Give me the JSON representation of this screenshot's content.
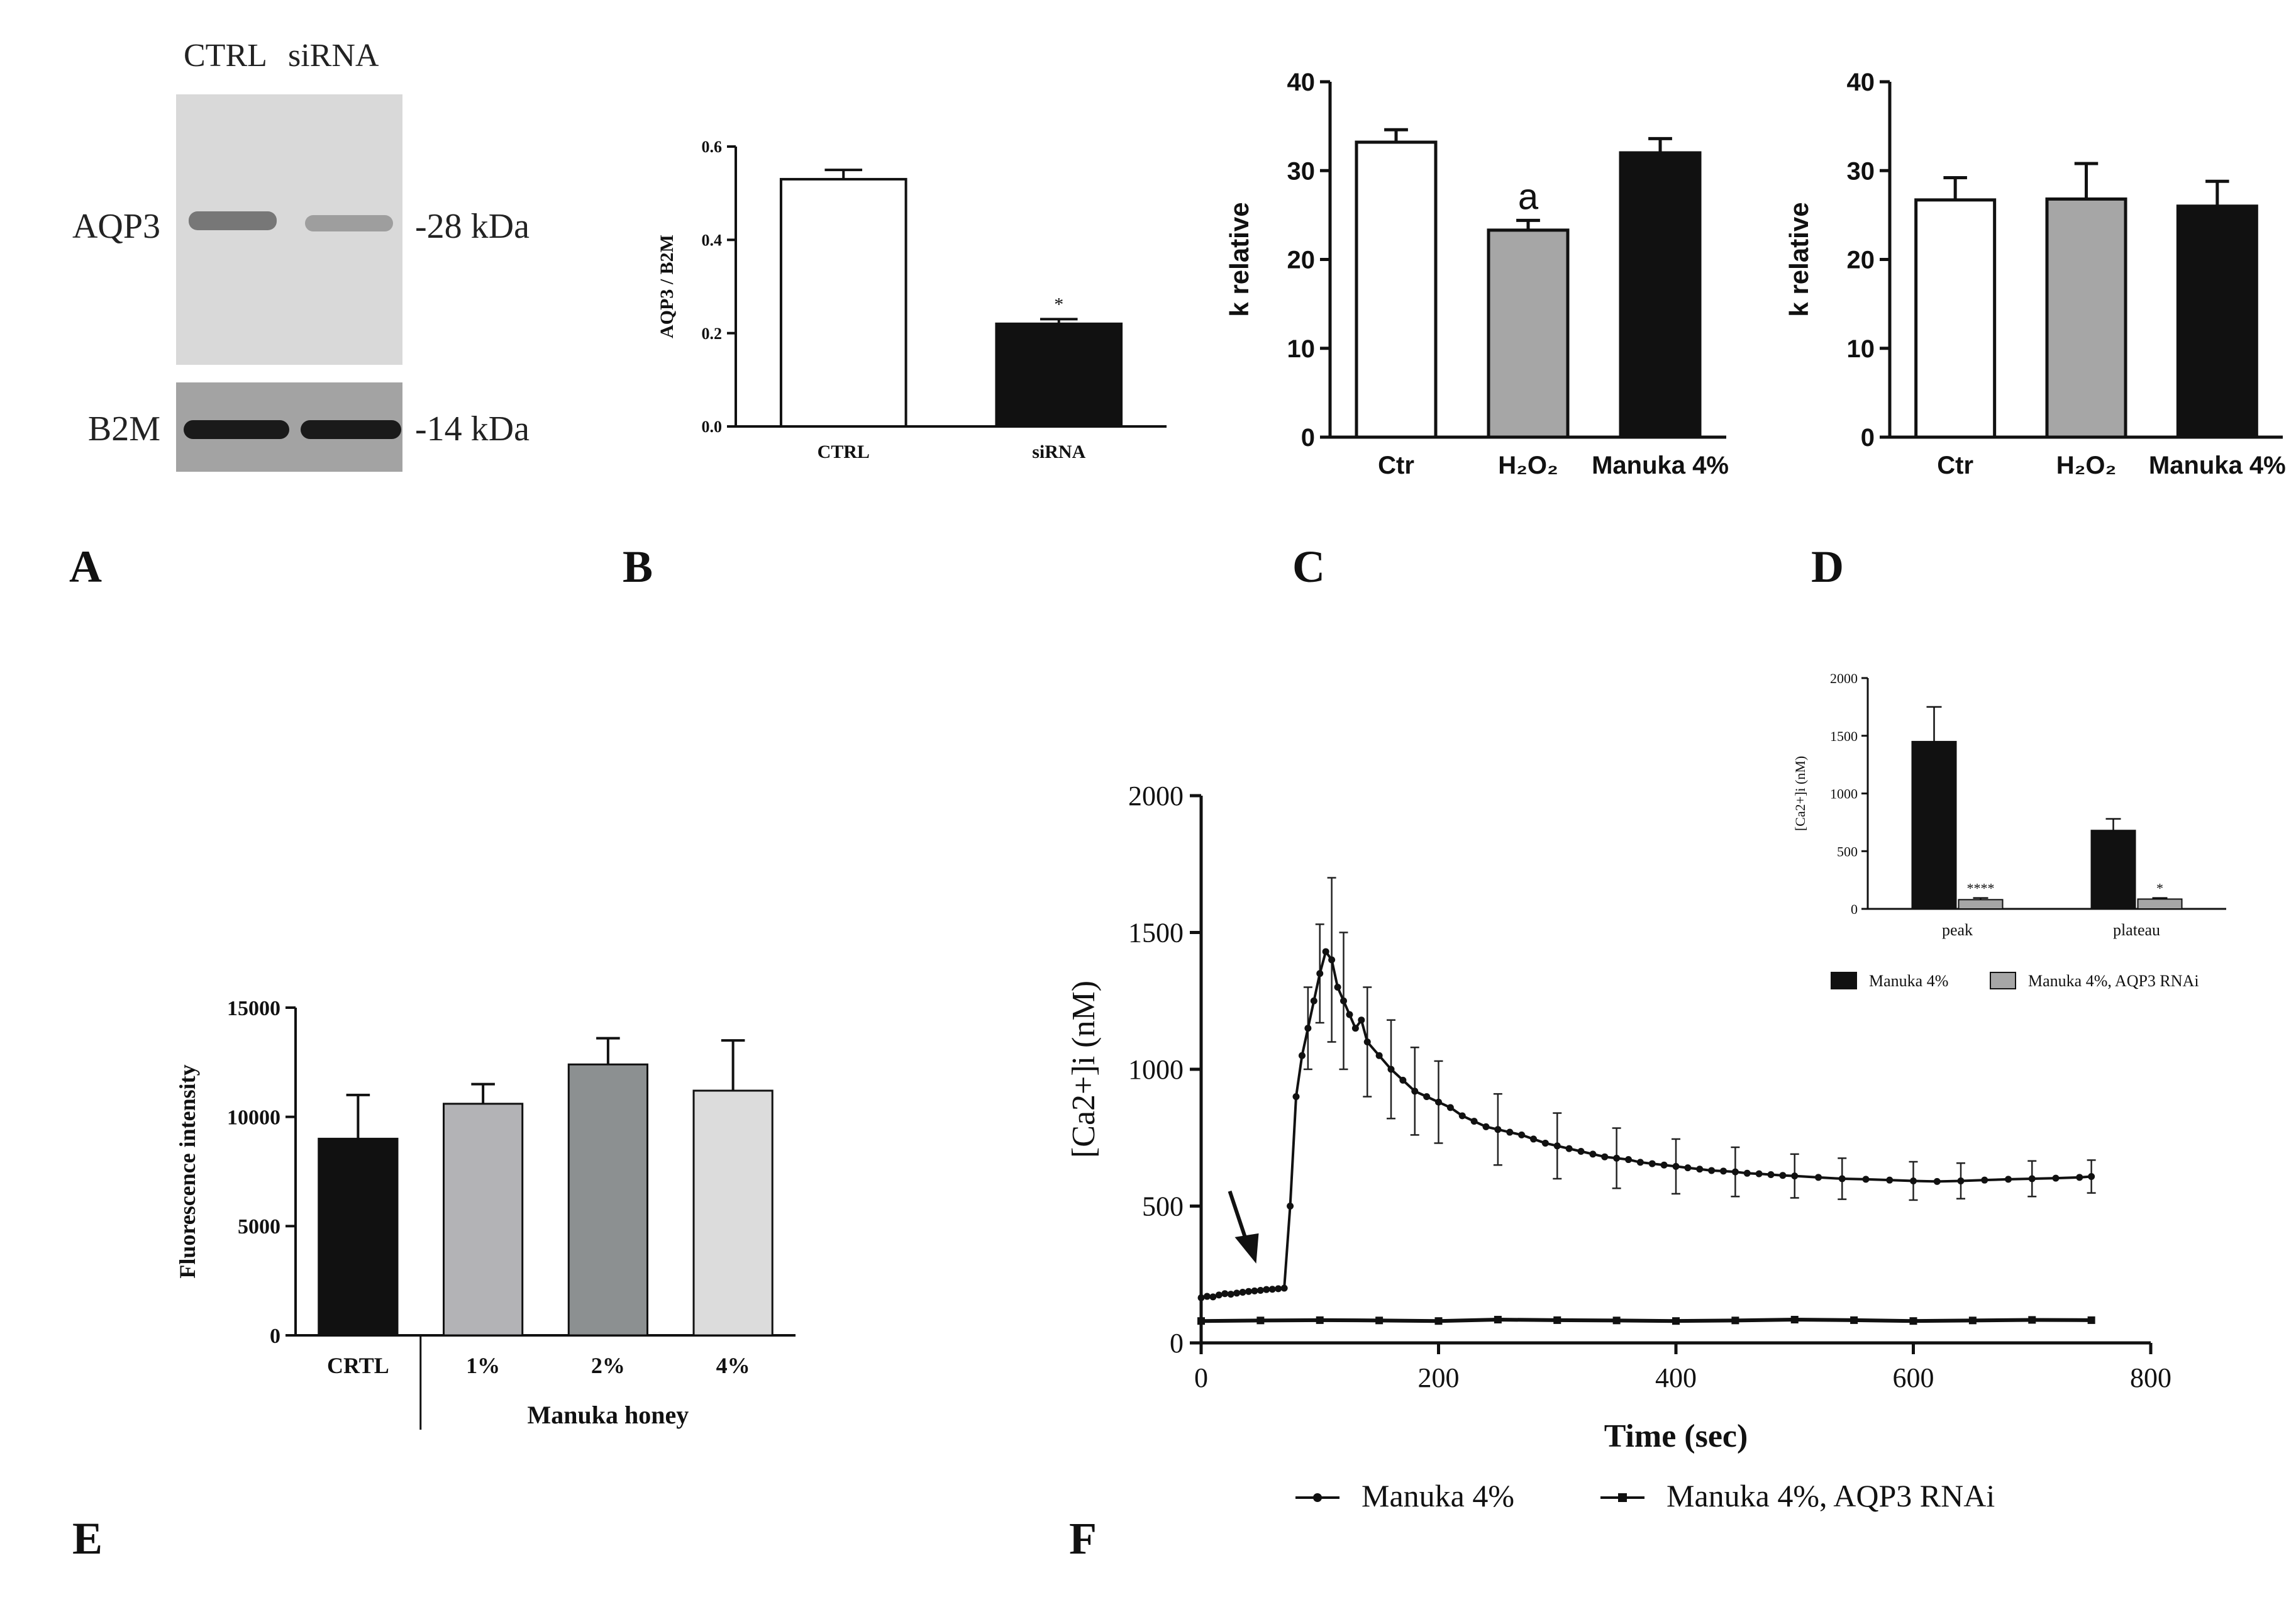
{
  "panel_labels": [
    "A",
    "B",
    "C",
    "D",
    "E",
    "F"
  ],
  "blot": {
    "lanes": [
      "CTRL",
      "siRNA"
    ],
    "rows": [
      {
        "protein": "AQP3",
        "mw": "-28 kDa"
      },
      {
        "protein": "B2M",
        "mw": "-14 kDa"
      }
    ]
  },
  "chart_data": [
    {
      "id": "B",
      "type": "bar",
      "title": "",
      "xlabel": "",
      "ylabel": "AQP3 / B2M",
      "categories": [
        "CTRL",
        "siRNA"
      ],
      "values": [
        0.53,
        0.22
      ],
      "errors": [
        0.02,
        0.01
      ],
      "fills": [
        "#ffffff",
        "#111111"
      ],
      "annotations": [
        "",
        "*"
      ],
      "ylim": [
        0,
        0.6
      ],
      "yticks": [
        0.0,
        0.2,
        0.4,
        0.6
      ],
      "ytick_labels": [
        "0.0",
        "0.2",
        "0.4",
        "0.6"
      ]
    },
    {
      "id": "C",
      "type": "bar",
      "title": "",
      "xlabel": "",
      "ylabel": "k relative",
      "categories": [
        "Ctr",
        "H₂O₂",
        "Manuka 4%"
      ],
      "values": [
        33.2,
        23.3,
        32.0
      ],
      "errors": [
        1.4,
        1.1,
        1.6
      ],
      "fills": [
        "#ffffff",
        "#a6a6a6",
        "#111111"
      ],
      "annotations": [
        "",
        "a",
        ""
      ],
      "ylim": [
        0,
        40
      ],
      "yticks": [
        0,
        10,
        20,
        30,
        40
      ],
      "ytick_labels": [
        "0",
        "10",
        "20",
        "30",
        "40"
      ]
    },
    {
      "id": "D",
      "type": "bar",
      "title": "",
      "xlabel": "",
      "ylabel": "k relative",
      "categories": [
        "Ctr",
        "H₂O₂",
        "Manuka 4%"
      ],
      "values": [
        26.7,
        26.8,
        26.0
      ],
      "errors": [
        2.5,
        4.0,
        2.8
      ],
      "fills": [
        "#ffffff",
        "#a6a6a6",
        "#111111"
      ],
      "annotations": [
        "",
        "",
        ""
      ],
      "ylim": [
        0,
        40
      ],
      "yticks": [
        0,
        10,
        20,
        30,
        40
      ],
      "ytick_labels": [
        "0",
        "10",
        "20",
        "30",
        "40"
      ]
    },
    {
      "id": "E",
      "type": "bar",
      "title": "",
      "xlabel": "Manuka honey",
      "ylabel": "Fluorescence intensity",
      "categories": [
        "CRTL",
        "1%",
        "2%",
        "4%"
      ],
      "values": [
        9000,
        10600,
        12400,
        11200
      ],
      "errors": [
        2000,
        900,
        1200,
        2300
      ],
      "fills": [
        "#111111",
        "#b3b3b6",
        "#8c9091",
        "#dcdcdc"
      ],
      "annotations": [
        "",
        "",
        "",
        ""
      ],
      "ylim": [
        0,
        15000
      ],
      "yticks": [
        0,
        5000,
        10000,
        15000
      ],
      "ytick_labels": [
        "0",
        "5000",
        "10000",
        "15000"
      ]
    },
    {
      "id": "F",
      "type": "line",
      "title": "",
      "xlabel": "Time (sec)",
      "ylabel": "[Ca2+]i (nM)",
      "xlim": [
        0,
        800
      ],
      "ylim": [
        0,
        2000
      ],
      "xticks": [
        0,
        200,
        400,
        600,
        800
      ],
      "xtick_labels": [
        "0",
        "200",
        "400",
        "600",
        "800"
      ],
      "yticks": [
        0,
        500,
        1000,
        1500,
        2000
      ],
      "ytick_labels": [
        "0",
        "500",
        "1000",
        "1500",
        "2000"
      ],
      "annotation": "arrow at ~40 s indicating stimulus addition",
      "series": [
        {
          "name": "Manuka 4%",
          "marker": "circle",
          "points": [
            [
              0,
              165
            ],
            [
              5,
              170
            ],
            [
              10,
              168
            ],
            [
              15,
              175
            ],
            [
              20,
              180
            ],
            [
              25,
              178
            ],
            [
              30,
              182
            ],
            [
              35,
              185
            ],
            [
              40,
              188
            ],
            [
              45,
              190
            ],
            [
              50,
              192
            ],
            [
              55,
              195
            ],
            [
              60,
              196
            ],
            [
              65,
              198
            ],
            [
              70,
              200
            ],
            [
              75,
              500
            ],
            [
              80,
              900
            ],
            [
              85,
              1050
            ],
            [
              90,
              1150
            ],
            [
              95,
              1250
            ],
            [
              100,
              1350
            ],
            [
              105,
              1430
            ],
            [
              110,
              1400
            ],
            [
              115,
              1300
            ],
            [
              120,
              1250
            ],
            [
              125,
              1200
            ],
            [
              130,
              1150
            ],
            [
              135,
              1180
            ],
            [
              140,
              1100
            ],
            [
              150,
              1050
            ],
            [
              160,
              1000
            ],
            [
              170,
              960
            ],
            [
              180,
              920
            ],
            [
              190,
              900
            ],
            [
              200,
              880
            ],
            [
              210,
              860
            ],
            [
              220,
              830
            ],
            [
              230,
              810
            ],
            [
              240,
              790
            ],
            [
              250,
              780
            ],
            [
              260,
              770
            ],
            [
              270,
              760
            ],
            [
              280,
              745
            ],
            [
              290,
              730
            ],
            [
              300,
              720
            ],
            [
              310,
              710
            ],
            [
              320,
              700
            ],
            [
              330,
              690
            ],
            [
              340,
              680
            ],
            [
              350,
              675
            ],
            [
              360,
              670
            ],
            [
              370,
              660
            ],
            [
              380,
              655
            ],
            [
              390,
              650
            ],
            [
              400,
              645
            ],
            [
              410,
              640
            ],
            [
              420,
              635
            ],
            [
              430,
              630
            ],
            [
              440,
              628
            ],
            [
              450,
              625
            ],
            [
              460,
              620
            ],
            [
              470,
              618
            ],
            [
              480,
              615
            ],
            [
              490,
              612
            ],
            [
              500,
              610
            ],
            [
              520,
              605
            ],
            [
              540,
              600
            ],
            [
              560,
              598
            ],
            [
              580,
              595
            ],
            [
              600,
              592
            ],
            [
              620,
              590
            ],
            [
              640,
              592
            ],
            [
              660,
              595
            ],
            [
              680,
              598
            ],
            [
              700,
              600
            ],
            [
              720,
              602
            ],
            [
              740,
              605
            ],
            [
              750,
              608
            ]
          ],
          "error": [
            [
              90,
              150
            ],
            [
              100,
              180
            ],
            [
              110,
              300
            ],
            [
              120,
              250
            ],
            [
              140,
              200
            ],
            [
              160,
              180
            ],
            [
              180,
              160
            ],
            [
              200,
              150
            ],
            [
              250,
              130
            ],
            [
              300,
              120
            ],
            [
              350,
              110
            ],
            [
              400,
              100
            ],
            [
              450,
              90
            ],
            [
              500,
              80
            ],
            [
              550,
              75
            ],
            [
              600,
              70
            ],
            [
              650,
              65
            ],
            [
              700,
              65
            ],
            [
              750,
              60
            ]
          ]
        },
        {
          "name": "Manuka 4%, AQP3 RNAi",
          "marker": "square",
          "points": [
            [
              0,
              80
            ],
            [
              50,
              82
            ],
            [
              100,
              83
            ],
            [
              150,
              82
            ],
            [
              200,
              80
            ],
            [
              250,
              85
            ],
            [
              300,
              83
            ],
            [
              350,
              82
            ],
            [
              400,
              80
            ],
            [
              450,
              82
            ],
            [
              500,
              85
            ],
            [
              550,
              83
            ],
            [
              600,
              80
            ],
            [
              650,
              82
            ],
            [
              700,
              84
            ],
            [
              750,
              83
            ]
          ]
        }
      ]
    },
    {
      "id": "F-inset",
      "type": "bar",
      "title": "",
      "xlabel": "",
      "ylabel": "[Ca2+]i (nM)",
      "categories": [
        "peak",
        "plateau"
      ],
      "series": [
        {
          "name": "Manuka 4%",
          "values": [
            1450,
            680
          ],
          "errors": [
            300,
            100
          ],
          "fill": "#111111"
        },
        {
          "name": "Manuka 4%, AQP3 RNAi",
          "values": [
            80,
            85
          ],
          "errors": [
            15,
            10
          ],
          "fill": "#a6a6a6"
        }
      ],
      "annotations": [
        "****",
        "*"
      ],
      "ylim": [
        0,
        2000
      ],
      "yticks": [
        0,
        500,
        1000,
        1500,
        2000
      ],
      "ytick_labels": [
        "0",
        "500",
        "1000",
        "1500",
        "2000"
      ]
    }
  ]
}
